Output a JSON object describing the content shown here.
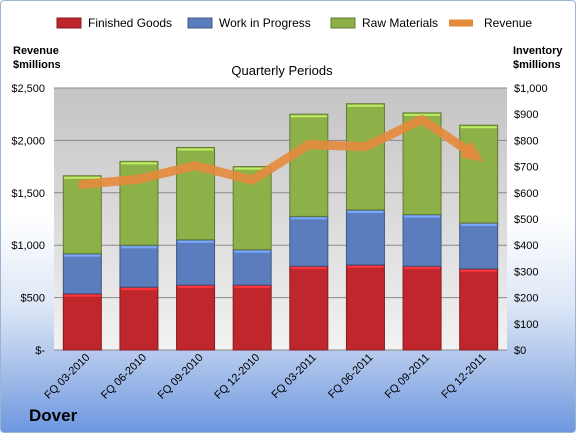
{
  "company": "Dover",
  "chart_data": {
    "type": "bar",
    "stacked": true,
    "title": "Quarterly Periods",
    "categories": [
      "FQ 03-2010",
      "FQ 06-2010",
      "FQ 09-2010",
      "FQ 12-2010",
      "FQ 03-2011",
      "FQ 06-2011",
      "FQ 09-2011",
      "FQ 12-2011"
    ],
    "series": [
      {
        "name": "Finished Goods",
        "axis": "right",
        "color": "#c0272d",
        "values": [
          215,
          240,
          248,
          248,
          320,
          325,
          320,
          310
        ]
      },
      {
        "name": "Work in Progress",
        "axis": "right",
        "color": "#5b7dbd",
        "values": [
          153,
          160,
          173,
          135,
          190,
          210,
          197,
          175
        ]
      },
      {
        "name": "Raw Materials",
        "axis": "right",
        "color": "#8db049",
        "values": [
          297,
          320,
          352,
          317,
          390,
          405,
          388,
          373
        ]
      },
      {
        "name": "Revenue",
        "axis": "left",
        "type": "line",
        "color": "#e48a3c",
        "values": [
          1580,
          1630,
          1760,
          1620,
          1960,
          1940,
          2200,
          1830
        ]
      }
    ],
    "y_left": {
      "label_line1": "Revenue",
      "label_line2": "$millions",
      "range": [
        0,
        2500
      ],
      "ticks": [
        0,
        500,
        1000,
        1500,
        2000,
        2500
      ],
      "tick_labels": [
        "$-",
        "$500",
        "$1,000",
        "$1,500",
        "$2,000",
        "$2,500"
      ]
    },
    "y_right": {
      "label_line1": "Inventory",
      "label_line2": "$millions",
      "range": [
        0,
        1000
      ],
      "ticks": [
        0,
        100,
        200,
        300,
        400,
        500,
        600,
        700,
        800,
        900,
        1000
      ],
      "tick_labels": [
        "$0",
        "$100",
        "$200",
        "$300",
        "$400",
        "$500",
        "$600",
        "$700",
        "$800",
        "$900",
        "$1,000"
      ]
    },
    "legend": "top",
    "grid": true
  }
}
